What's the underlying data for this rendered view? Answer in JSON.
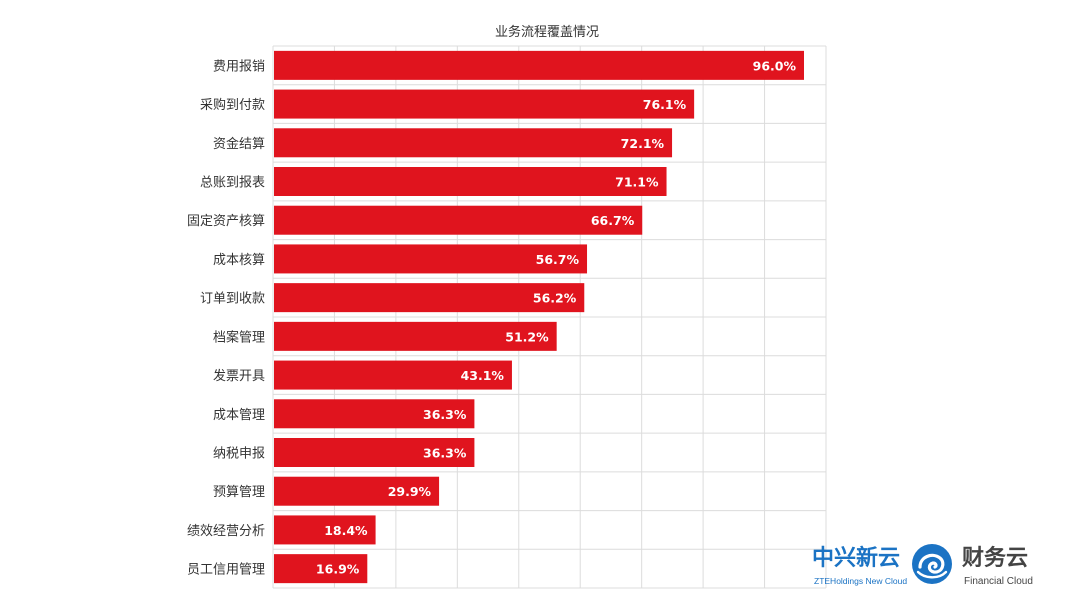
{
  "chart_data": {
    "type": "bar",
    "orientation": "horizontal",
    "title": "业务流程覆盖情况",
    "categories": [
      "费用报销",
      "采购到付款",
      "资金结算",
      "总账到报表",
      "固定资产核算",
      "成本核算",
      "订单到收款",
      "档案管理",
      "发票开具",
      "成本管理",
      "纳税申报",
      "预算管理",
      "绩效经营分析",
      "员工信用管理"
    ],
    "values": [
      96.0,
      76.1,
      72.1,
      71.1,
      66.7,
      56.7,
      56.2,
      51.2,
      43.1,
      36.3,
      36.3,
      29.9,
      18.4,
      16.9
    ],
    "value_labels": [
      "96.0%",
      "76.1%",
      "72.1%",
      "71.1%",
      "66.7%",
      "56.7%",
      "56.2%",
      "51.2%",
      "43.1%",
      "36.3%",
      "36.3%",
      "29.9%",
      "18.4%",
      "16.9%"
    ],
    "xlim": [
      0,
      100
    ],
    "grid": true,
    "bar_color": "#e0141e",
    "grid_color": "#dcdcdc"
  },
  "branding": {
    "left_cn": "中兴新云",
    "left_en": "ZTEHoldings New Cloud",
    "right_cn": "财务云",
    "right_en": "Financial Cloud",
    "mark_icon": "cloud-swirl-icon",
    "color_primary": "#1b73c4",
    "color_secondary": "#444444"
  }
}
